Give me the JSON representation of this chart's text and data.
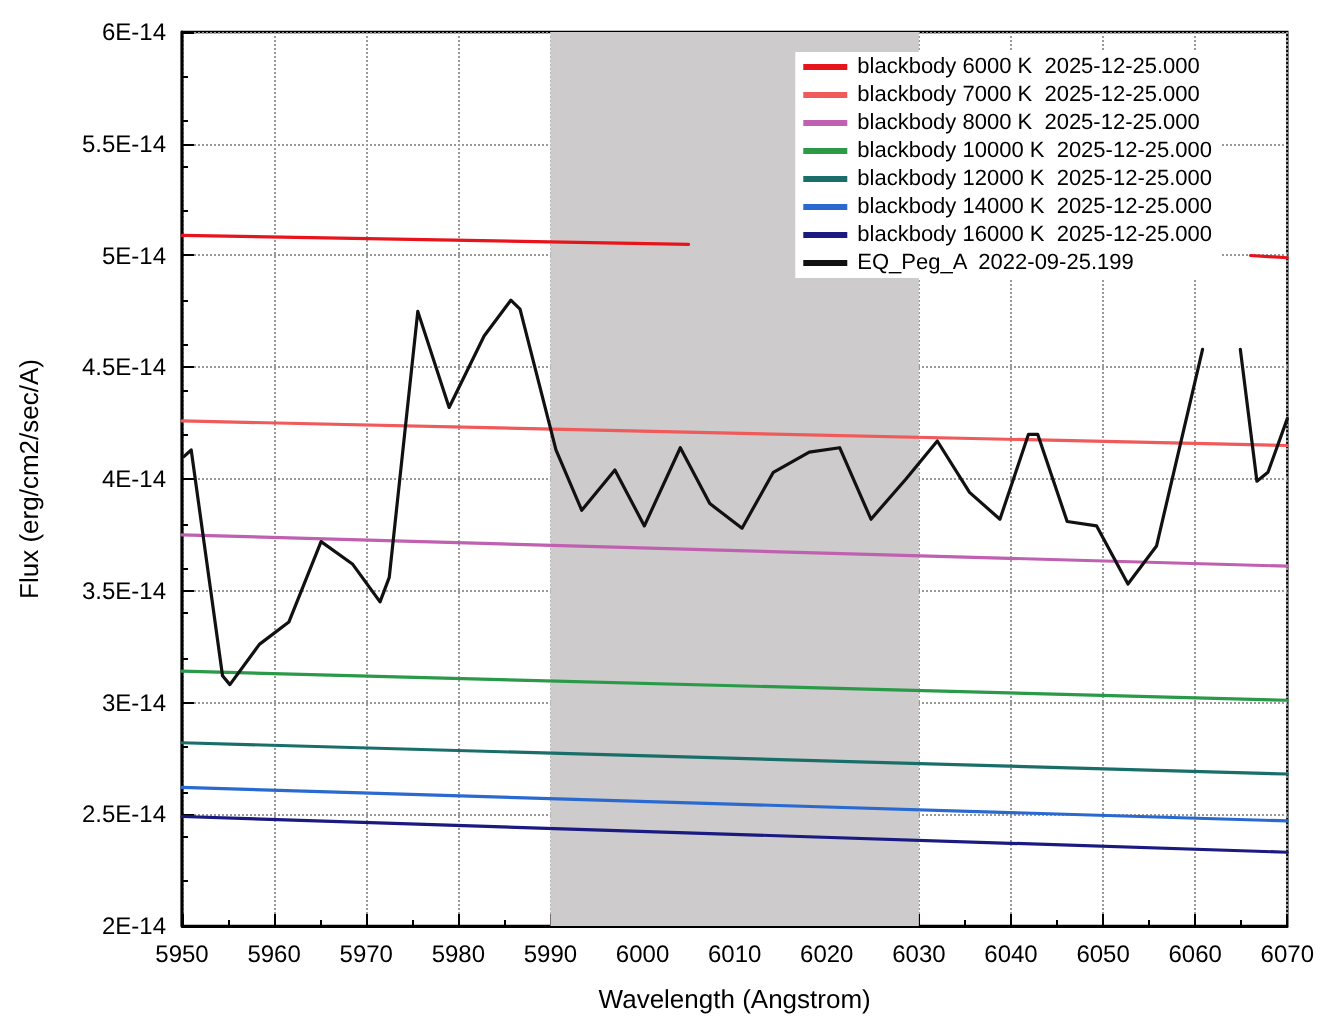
{
  "chart_data": {
    "type": "line",
    "xlabel": "Wavelength (Angstrom)",
    "ylabel": "Flux (erg/cm2/sec/A)",
    "xlim": [
      5950,
      6070
    ],
    "xticks": [
      5950,
      5960,
      5970,
      5980,
      5990,
      6000,
      6010,
      6020,
      6030,
      6040,
      6050,
      6060,
      6070
    ],
    "ylim": [
      2e-14,
      6e-14
    ],
    "yticks": [
      {
        "value": 2e-14,
        "label": "2E-14"
      },
      {
        "value": 2.5e-14,
        "label": "2.5E-14"
      },
      {
        "value": 3e-14,
        "label": "3E-14"
      },
      {
        "value": 3.5e-14,
        "label": "3.5E-14"
      },
      {
        "value": 4e-14,
        "label": "4E-14"
      },
      {
        "value": 4.5e-14,
        "label": "4.5E-14"
      },
      {
        "value": 5e-14,
        "label": "5E-14"
      },
      {
        "value": 5.5e-14,
        "label": "5.5E-14"
      },
      {
        "value": 6e-14,
        "label": "6E-14"
      }
    ],
    "grid": true,
    "legend": "top right",
    "marker": "none",
    "line_style": "solid",
    "bands": [
      {
        "axis": "x",
        "from": 5990,
        "to": 6030,
        "color": "#cdcbcb"
      }
    ],
    "series": [
      {
        "name": "blackbody 6000 K  2025-12-25.000",
        "color": "#e8141c",
        "x": [
          5950,
          6005,
          6030,
          6066,
          6070
        ],
        "values": [
          5.09e-14,
          5.05e-14,
          null,
          5e-14,
          4.99e-14
        ]
      },
      {
        "name": "blackbody 7000 K  2025-12-25.000",
        "color": "#f05a5a",
        "x": [
          5950,
          6070
        ],
        "values": [
          4.26e-14,
          4.15e-14
        ]
      },
      {
        "name": "blackbody 8000 K  2025-12-25.000",
        "color": "#c060b0",
        "x": [
          5950,
          6070
        ],
        "values": [
          3.75e-14,
          3.61e-14
        ]
      },
      {
        "name": "blackbody 10000 K  2025-12-25.000",
        "color": "#2a9a48",
        "x": [
          5950,
          6070
        ],
        "values": [
          3.14e-14,
          3.01e-14
        ]
      },
      {
        "name": "blackbody 12000 K  2025-12-25.000",
        "color": "#1a6e6a",
        "x": [
          5950,
          6070
        ],
        "values": [
          2.82e-14,
          2.68e-14
        ]
      },
      {
        "name": "blackbody 14000 K  2025-12-25.000",
        "color": "#2a6ad0",
        "x": [
          5950,
          6070
        ],
        "values": [
          2.62e-14,
          2.47e-14
        ]
      },
      {
        "name": "blackbody 16000 K  2025-12-25.000",
        "color": "#1a1a80",
        "x": [
          5950,
          6070
        ],
        "values": [
          2.49e-14,
          2.33e-14
        ]
      },
      {
        "name": "EQ_Peg_A  2022-09-25.199",
        "color": "#111111",
        "x": [
          5950.2,
          5951,
          5954.4,
          5955.2,
          5958.4,
          5961.6,
          5965.1,
          5968.5,
          5971.5,
          5972.5,
          5975.6,
          5979,
          5982.8,
          5985.7,
          5986.7,
          5990.6,
          5993.4,
          5997,
          6000.2,
          6004.1,
          6007.3,
          6010.8,
          6014.2,
          6018.1,
          6021.4,
          6024.8,
          6028.6,
          6032,
          6035.5,
          6038.8,
          6041.9,
          6042.9,
          6046.1,
          6049.3,
          6052.7,
          6055.8,
          6060.8,
          6063,
          6064.9,
          6066.7,
          6067.9,
          6070
        ],
        "values": [
          4.1e-14,
          4.13e-14,
          3.12e-14,
          3.08e-14,
          3.26e-14,
          3.36e-14,
          3.72e-14,
          3.62e-14,
          3.45e-14,
          3.56e-14,
          4.75e-14,
          4.32e-14,
          4.64e-14,
          4.8e-14,
          4.76e-14,
          4.13e-14,
          3.86e-14,
          4.04e-14,
          3.79e-14,
          4.14e-14,
          3.89e-14,
          3.78e-14,
          4.03e-14,
          4.12e-14,
          4.14e-14,
          3.82e-14,
          4e-14,
          4.17e-14,
          3.94e-14,
          3.82e-14,
          4.2e-14,
          4.2e-14,
          3.81e-14,
          3.79e-14,
          3.53e-14,
          3.7e-14,
          4.58e-14,
          null,
          4.58e-14,
          3.99e-14,
          4.03e-14,
          4.27e-14
        ]
      }
    ]
  }
}
